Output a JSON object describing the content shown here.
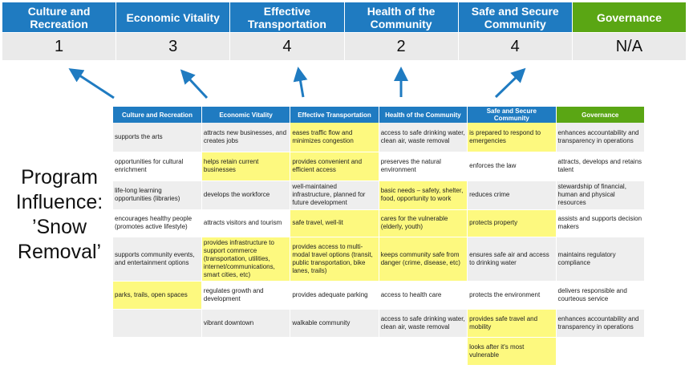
{
  "top": {
    "categories": [
      "Culture and Recreation",
      "Economic Vitality",
      "Effective Transportation",
      "Health of the Community",
      "Safe and Secure Community",
      "Governance"
    ],
    "scores": [
      "1",
      "3",
      "4",
      "2",
      "4",
      "N/A"
    ]
  },
  "side_label": "Program Influence: ’Snow Removal’",
  "colors": {
    "blue": "#1f7bc1",
    "green": "#5aa614",
    "highlight": "#fdf97f",
    "arrow": "#1f7bc1"
  },
  "table": {
    "headers": [
      "Culture and Recreation",
      "Economic Vitality",
      "Effective Transportation",
      "Health of the Community",
      "Safe and Secure Community",
      "Governance"
    ],
    "rows": [
      [
        "supports the arts",
        "attracts new businesses, and creates jobs",
        "eases traffic flow and minimizes congestion",
        "access to safe drinking water, clean air, waste removal",
        "is prepared to respond to emergencies",
        "enhances accountability and transparency in operations"
      ],
      [
        "opportunities for cultural enrichment",
        "helps retain current businesses",
        "provides convenient and efficient access",
        "preserves the natural environment",
        "enforces the law",
        "attracts, develops and retains talent"
      ],
      [
        "life-long learning opportunities (libraries)",
        "develops the workforce",
        "well-maintained infrastructure, planned for future development",
        "basic needs – safety, shelter, food, opportunity to work",
        "reduces crime",
        "stewardship of financial, human and physical resources"
      ],
      [
        "encourages healthy people (promotes active lifestyle)",
        "attracts visitors and tourism",
        "safe travel, well-lit",
        "cares for the vulnerable (elderly, youth)",
        "protects property",
        "assists and supports decision makers"
      ],
      [
        "supports community events, and entertainment options",
        "provides infrastructure to support commerce (transportation, utilities, internet/communications, smart cities, etc)",
        "provides access to multi-modal travel options (transit, public transportation, bike lanes, trails)",
        "keeps community safe from danger (crime, disease, etc)",
        "ensures safe air and access to drinking water",
        "maintains regulatory compliance"
      ],
      [
        "parks, trails, open spaces",
        "regulates growth and development",
        "provides adequate parking",
        "access to health care",
        "protects the environment",
        "delivers responsible and courteous service"
      ],
      [
        "",
        "vibrant downtown",
        "walkable community",
        "access to safe drinking water, clean air, waste removal",
        "provides safe travel and mobility",
        "enhances accountability and transparency in operations"
      ],
      [
        "",
        "",
        "",
        "",
        "looks after it's most vulnerable",
        ""
      ]
    ],
    "highlighted": [
      [
        false,
        false,
        true,
        false,
        true,
        false
      ],
      [
        false,
        true,
        true,
        false,
        false,
        false
      ],
      [
        false,
        false,
        false,
        true,
        false,
        false
      ],
      [
        false,
        false,
        true,
        true,
        true,
        false
      ],
      [
        false,
        true,
        true,
        true,
        false,
        false
      ],
      [
        true,
        false,
        false,
        false,
        false,
        false
      ],
      [
        false,
        false,
        false,
        false,
        true,
        false
      ],
      [
        false,
        false,
        false,
        false,
        true,
        false
      ]
    ]
  }
}
